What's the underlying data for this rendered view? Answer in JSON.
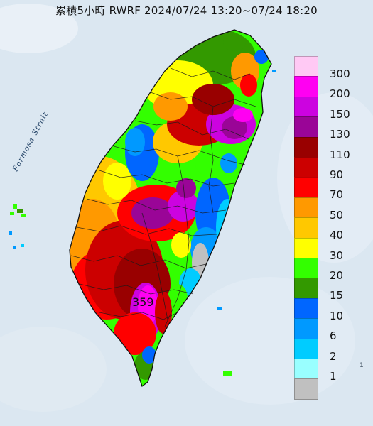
{
  "title": "累積5小時 RWRF 2024/07/24 13:20~07/24 18:20",
  "strait_label": "Formosa Strait",
  "max_value_label": "359",
  "edge_label": "1",
  "legend": {
    "unit_note": "",
    "entries": [
      {
        "label": "300",
        "color": "#ffc9f4"
      },
      {
        "label": "200",
        "color": "#ff00f2"
      },
      {
        "label": "150",
        "color": "#cc03e0"
      },
      {
        "label": "130",
        "color": "#9a0597"
      },
      {
        "label": "110",
        "color": "#990000"
      },
      {
        "label": "90",
        "color": "#cc0000"
      },
      {
        "label": "70",
        "color": "#ff0000"
      },
      {
        "label": "50",
        "color": "#ff9900"
      },
      {
        "label": "40",
        "color": "#ffc800"
      },
      {
        "label": "30",
        "color": "#ffff00"
      },
      {
        "label": "20",
        "color": "#33ff00"
      },
      {
        "label": "15",
        "color": "#339900"
      },
      {
        "label": "10",
        "color": "#0066ff"
      },
      {
        "label": "6",
        "color": "#0099ff"
      },
      {
        "label": "2",
        "color": "#00ccff"
      },
      {
        "label": "1",
        "color": "#99ffff"
      },
      {
        "label": "",
        "color": "#c0c0c0"
      }
    ]
  },
  "map": {
    "sea_color": "#dbe7f1",
    "coast_color": "#101010",
    "county_line_color": "#1a1a1a"
  }
}
